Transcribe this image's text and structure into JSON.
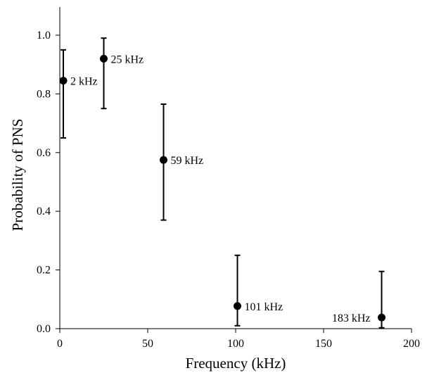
{
  "chart_data": {
    "type": "scatter",
    "title": "",
    "xlabel": "Frequency (kHz)",
    "ylabel": "Probability of PNS",
    "xlim": [
      0,
      200
    ],
    "ylim": [
      0,
      1.1
    ],
    "x_ticks": [
      0,
      50,
      100,
      150,
      200
    ],
    "x_tick_labels": [
      "0",
      "50",
      "100",
      "150",
      "200"
    ],
    "y_ticks": [
      0,
      0.2,
      0.4,
      0.6,
      0.8,
      1.0
    ],
    "y_tick_labels": [
      "0.0",
      "0.2",
      "0.4",
      "0.6",
      "0.8",
      "1.0"
    ],
    "grid": false,
    "points": [
      {
        "x": 2,
        "y": 0.845,
        "lower": 0.65,
        "upper": 0.95,
        "label": "2 kHz"
      },
      {
        "x": 25,
        "y": 0.92,
        "lower": 0.75,
        "upper": 0.99,
        "label": "25 kHz"
      },
      {
        "x": 59,
        "y": 0.575,
        "lower": 0.37,
        "upper": 0.765,
        "label": "59 kHz"
      },
      {
        "x": 101,
        "y": 0.077,
        "lower": 0.01,
        "upper": 0.25,
        "label": "101 kHz"
      },
      {
        "x": 183,
        "y": 0.038,
        "lower": 0.003,
        "upper": 0.195,
        "label": "183 kHz"
      }
    ],
    "colors": {
      "marker": "#000000",
      "axis": "#000000"
    }
  }
}
